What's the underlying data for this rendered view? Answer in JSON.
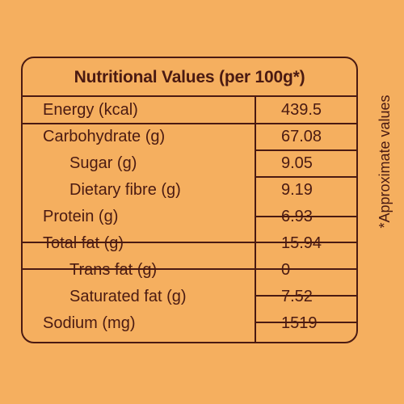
{
  "table": {
    "title": "Nutritional Values (per 100g*)",
    "rows": [
      {
        "label": "Energy (kcal)",
        "value": "439.5"
      },
      {
        "label": "Carbohydrate (g)",
        "value": "67.08"
      },
      {
        "label": "Sugar (g)",
        "value": "9.05"
      },
      {
        "label": "Dietary fibre (g)",
        "value": "9.19"
      },
      {
        "label": "Protein (g)",
        "value": "6.93"
      },
      {
        "label": "Total fat (g)",
        "value": "15.94"
      },
      {
        "label": "Trans fat (g)",
        "value": "0"
      },
      {
        "label": "Saturated fat (g)",
        "value": "7.52"
      },
      {
        "label": "Sodium (mg)",
        "value": "1519"
      }
    ]
  },
  "side_note": "*Approximate values",
  "colors": {
    "background": "#F5AF5F",
    "ink": "#4A1A12"
  }
}
